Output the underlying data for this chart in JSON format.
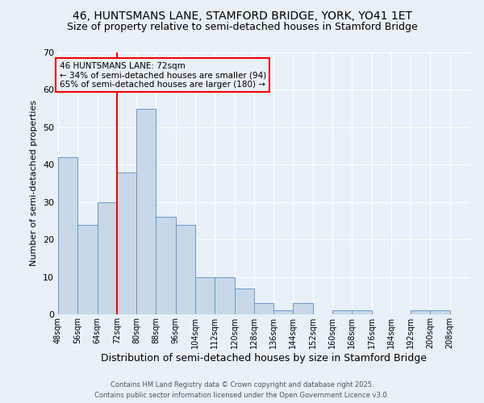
{
  "title": "46, HUNTSMANS LANE, STAMFORD BRIDGE, YORK, YO41 1ET",
  "subtitle": "Size of property relative to semi-detached houses in Stamford Bridge",
  "xlabel": "Distribution of semi-detached houses by size in Stamford Bridge",
  "ylabel": "Number of semi-detached properties",
  "bins": [
    48,
    56,
    64,
    72,
    80,
    88,
    96,
    104,
    112,
    120,
    128,
    136,
    144,
    152,
    160,
    168,
    176,
    184,
    192,
    200,
    208
  ],
  "counts": [
    42,
    24,
    30,
    38,
    55,
    26,
    24,
    10,
    10,
    7,
    3,
    1,
    3,
    0,
    1,
    1,
    0,
    0,
    1,
    1
  ],
  "bar_color": "#c8d8e8",
  "bar_edge_color": "#6699cc",
  "vline_x": 72,
  "vline_color": "red",
  "annotation_title": "46 HUNTSMANS LANE: 72sqm",
  "annotation_line1": "← 34% of semi-detached houses are smaller (94)",
  "annotation_line2": "65% of semi-detached houses are larger (180) →",
  "annotation_box_color": "red",
  "ylim": [
    0,
    70
  ],
  "yticks": [
    0,
    10,
    20,
    30,
    40,
    50,
    60,
    70
  ],
  "background_color": "#e8f0f8",
  "footer": "Contains HM Land Registry data © Crown copyright and database right 2025.\nContains public sector information licensed under the Open Government Licence v3.0.",
  "title_fontsize": 10,
  "subtitle_fontsize": 9,
  "xlabel_fontsize": 9,
  "ylabel_fontsize": 8,
  "footer_fontsize": 6,
  "annot_fontsize": 7.5,
  "tick_fontsize": 7
}
